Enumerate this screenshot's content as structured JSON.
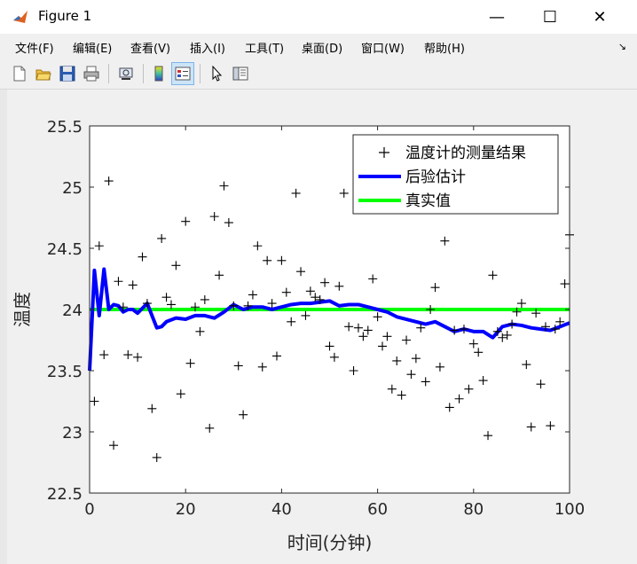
{
  "window": {
    "title": "Figure 1",
    "minimize_glyph": "—",
    "maximize_glyph": "☐",
    "close_glyph": "✕"
  },
  "menu": [
    "文件(F)",
    "编辑(E)",
    "查看(V)",
    "插入(I)",
    "工具(T)",
    "桌面(D)",
    "窗口(W)",
    "帮助(H)"
  ],
  "toolbar": {
    "icons": [
      "new-figure-icon",
      "open-file-icon",
      "save-icon",
      "print-icon",
      "link-plot-icon",
      "colorbar-icon",
      "legend-icon",
      "pointer-icon",
      "property-inspector-icon"
    ]
  },
  "chart_data": {
    "type": "line",
    "xlabel": "时间(分钟)",
    "ylabel": "温度",
    "xlim": [
      0,
      100
    ],
    "ylim": [
      22.5,
      25.5
    ],
    "xticks": [
      "0",
      "20",
      "40",
      "60",
      "80",
      "100"
    ],
    "yticks": [
      "22.5",
      "23",
      "23.5",
      "24",
      "24.5",
      "25",
      "25.5"
    ],
    "legend_position": "top-right",
    "series": [
      {
        "name": "温度计的测量结果",
        "style": "markers",
        "marker": "+",
        "color": "#000000",
        "x": [
          1,
          2,
          3,
          4,
          5,
          6,
          7,
          8,
          9,
          10,
          11,
          12,
          13,
          14,
          15,
          16,
          17,
          18,
          19,
          20,
          21,
          22,
          23,
          24,
          25,
          26,
          27,
          28,
          29,
          30,
          31,
          32,
          33,
          34,
          35,
          36,
          37,
          38,
          39,
          40,
          41,
          42,
          43,
          44,
          45,
          46,
          47,
          48,
          49,
          50,
          51,
          52,
          53,
          54,
          55,
          56,
          57,
          58,
          59,
          60,
          61,
          62,
          63,
          64,
          65,
          66,
          67,
          68,
          69,
          70,
          71,
          72,
          73,
          74,
          75,
          76,
          77,
          78,
          79,
          80,
          81,
          82,
          83,
          84,
          85,
          86,
          87,
          88,
          89,
          90,
          91,
          92,
          93,
          94,
          95,
          96,
          97,
          98,
          99,
          100
        ],
        "y": [
          23.25,
          24.52,
          23.63,
          25.05,
          22.89,
          24.23,
          24.02,
          23.63,
          24.2,
          23.61,
          24.43,
          24.05,
          23.19,
          22.79,
          24.58,
          24.1,
          24.04,
          24.36,
          23.31,
          24.72,
          23.56,
          24.02,
          23.82,
          24.08,
          23.03,
          24.76,
          24.28,
          25.01,
          24.71,
          24.03,
          23.54,
          23.14,
          24.03,
          24.12,
          24.52,
          23.53,
          24.4,
          24.05,
          23.62,
          24.4,
          24.14,
          23.9,
          24.95,
          24.31,
          23.95,
          24.15,
          24.1,
          24.08,
          24.22,
          23.7,
          23.61,
          24.19,
          24.95,
          23.86,
          23.5,
          23.85,
          23.78,
          23.83,
          24.25,
          23.94,
          23.7,
          23.78,
          23.35,
          23.58,
          23.3,
          23.75,
          23.47,
          23.6,
          23.85,
          23.41,
          24.0,
          24.18,
          23.53,
          24.56,
          23.2,
          23.83,
          23.27,
          23.84,
          23.35,
          23.72,
          23.65,
          23.42,
          22.97,
          24.28,
          23.82,
          23.77,
          23.79,
          23.88,
          23.98,
          24.05,
          23.55,
          23.04,
          23.97,
          23.39,
          23.86,
          23.05,
          23.84,
          23.9,
          24.21,
          24.61
        ]
      },
      {
        "name": "后验估计",
        "style": "line",
        "color": "#0000ff",
        "x": [
          0,
          1,
          2,
          3,
          4,
          5,
          6,
          7,
          8,
          9,
          10,
          12,
          14,
          15,
          16,
          18,
          20,
          22,
          24,
          26,
          28,
          30,
          32,
          34,
          36,
          38,
          40,
          42,
          44,
          46,
          48,
          50,
          52,
          54,
          56,
          58,
          60,
          62,
          64,
          66,
          68,
          70,
          72,
          74,
          76,
          78,
          80,
          82,
          84,
          86,
          88,
          90,
          92,
          94,
          96,
          98,
          100
        ],
        "y": [
          23.5,
          24.32,
          23.95,
          24.33,
          24.0,
          24.04,
          24.03,
          23.98,
          24.0,
          24.0,
          23.97,
          24.05,
          23.85,
          23.86,
          23.9,
          23.93,
          23.92,
          23.95,
          23.95,
          23.93,
          23.98,
          24.04,
          24.0,
          24.02,
          24.02,
          24.0,
          24.02,
          24.04,
          24.05,
          24.05,
          24.06,
          24.07,
          24.03,
          24.04,
          24.04,
          24.02,
          24.0,
          23.98,
          23.94,
          23.92,
          23.9,
          23.88,
          23.9,
          23.86,
          23.82,
          23.84,
          23.82,
          23.82,
          23.77,
          23.86,
          23.88,
          23.87,
          23.85,
          23.84,
          23.83,
          23.86,
          23.89
        ]
      },
      {
        "name": "真实值",
        "style": "line",
        "color": "#00ff00",
        "x": [
          0,
          100
        ],
        "y": [
          24,
          24
        ]
      }
    ]
  }
}
